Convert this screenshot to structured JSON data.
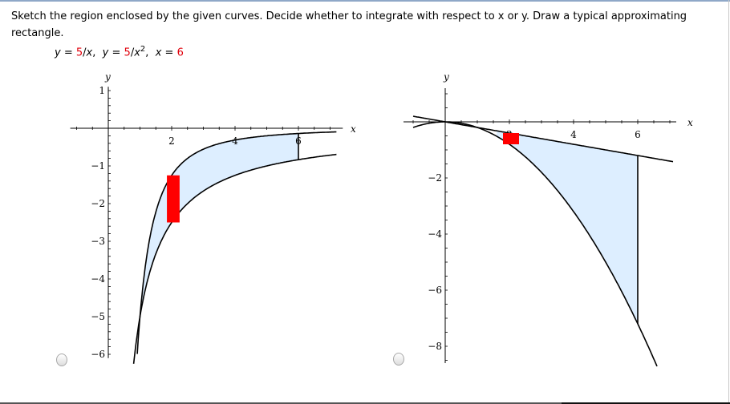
{
  "question": {
    "prompt": "Sketch the region enclosed by the given curves. Decide whether to integrate with respect to x or y. Draw a typical approximating rectangle.",
    "equation_parts": [
      {
        "text": "y",
        "style": "italic"
      },
      {
        "text": " = ",
        "style": "normal"
      },
      {
        "text": "5",
        "style": "red"
      },
      {
        "text": "/",
        "style": "normal"
      },
      {
        "text": "x",
        "style": "italic"
      },
      {
        "text": ",  ",
        "style": "normal"
      },
      {
        "text": "y",
        "style": "italic"
      },
      {
        "text": " = ",
        "style": "normal"
      },
      {
        "text": "5",
        "style": "red"
      },
      {
        "text": "/",
        "style": "normal"
      },
      {
        "text": "x",
        "style": "italic"
      },
      {
        "text": "2",
        "style": "sup"
      },
      {
        "text": ",  ",
        "style": "normal"
      },
      {
        "text": "x",
        "style": "italic"
      },
      {
        "text": " = ",
        "style": "normal"
      },
      {
        "text": "6",
        "style": "red"
      }
    ]
  },
  "colors": {
    "fill": "#ddeeff",
    "rect": "#ff0000",
    "curve": "#000000",
    "highlight": "#e0000b"
  },
  "chart_data": [
    {
      "type": "line",
      "option": "choice-1",
      "xlabel": "x",
      "ylabel": "y",
      "xlim": [
        -1.2,
        7.4
      ],
      "ylim": [
        -6.1,
        1.1
      ],
      "xticks": [
        2,
        4,
        6
      ],
      "yticks": [
        1,
        -1,
        -2,
        -3,
        -4,
        -5,
        -6
      ],
      "curves": [
        {
          "expr": "-5/x^2",
          "from": 0.85,
          "to": 7.2
        },
        {
          "expr": "-5/x",
          "from": 0.8,
          "to": 7.2
        }
      ],
      "boundary_x": 6,
      "shaded_between": [
        1,
        6
      ],
      "rectangle": {
        "x": [
          1.85,
          2.25
        ],
        "y": [
          -2.5,
          -1.25
        ]
      }
    },
    {
      "type": "line",
      "option": "choice-2",
      "xlabel": "x",
      "ylabel": "y",
      "xlim": [
        -1.3,
        7.2
      ],
      "ylim": [
        -8.6,
        1.2
      ],
      "xticks": [
        2,
        4,
        6
      ],
      "yticks": [
        -2,
        -4,
        -6,
        -8
      ],
      "curves": [
        {
          "expr": "-x/5",
          "from": -1.0,
          "to": 7.1
        },
        {
          "expr": "-x^2/5",
          "from": -1.0,
          "to": 6.6
        }
      ],
      "boundary_x": 6,
      "shaded_between": [
        1.6,
        6
      ],
      "rectangle": {
        "x": [
          1.8,
          2.3
        ],
        "y": [
          -0.8,
          -0.4
        ]
      }
    }
  ]
}
